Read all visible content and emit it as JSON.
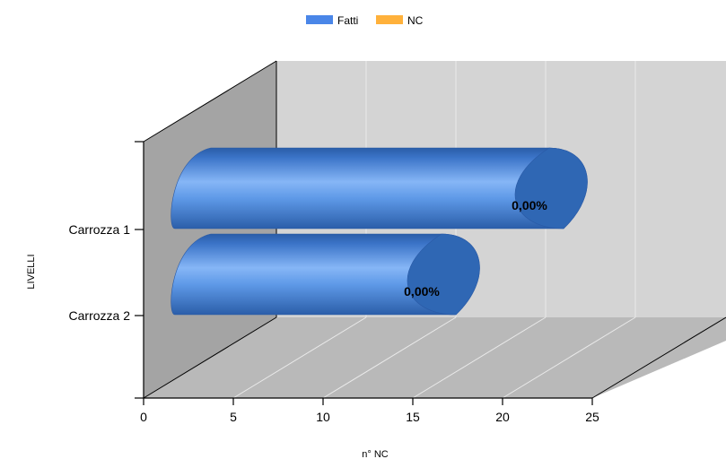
{
  "chart_data": {
    "type": "bar",
    "orientation": "horizontal",
    "style": "3d-cylinder",
    "legend": {
      "placement": "top-center",
      "entries": [
        {
          "name": "Fatti",
          "color": "#4a86e8"
        },
        {
          "name": "NC",
          "color": "#ffb13b"
        }
      ]
    },
    "categories": [
      "Carrozza 1",
      "Carrozza 2"
    ],
    "series": [
      {
        "name": "Fatti",
        "color": "#4a86e8",
        "values": [
          24.5,
          18.5
        ],
        "labels": [
          "0,00%",
          "0,00%"
        ]
      },
      {
        "name": "NC",
        "color": "#ffb13b",
        "values": [
          0,
          0
        ]
      }
    ],
    "xlabel": "n° NC",
    "ylabel": "LIVELLI",
    "xlim": [
      0,
      25
    ],
    "xticks": [
      "0",
      "5",
      "10",
      "15",
      "20",
      "25"
    ],
    "grid": true,
    "colors": {
      "back_wall": "#d4d4d4",
      "side_wall": "#a4a4a4",
      "floor": "#b9b9b9",
      "grid": "#eaeaea",
      "bar_body": "#4f8ee6",
      "bar_end": "#2f67b4"
    }
  }
}
